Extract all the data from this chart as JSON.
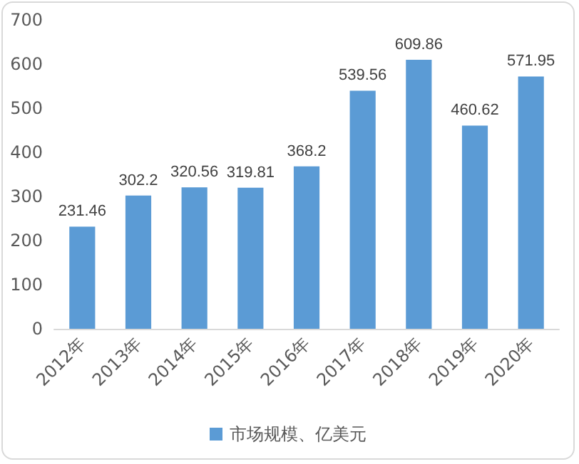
{
  "chart_data": {
    "type": "bar",
    "categories": [
      "2012年",
      "2013年",
      "2014年",
      "2015年",
      "2016年",
      "2017年",
      "2018年",
      "2019年",
      "2020年"
    ],
    "series": [
      {
        "name": "市场规模、亿美元",
        "color": "#5b9bd5",
        "values": [
          231.46,
          302.2,
          320.56,
          319.81,
          368.2,
          539.56,
          609.86,
          460.62,
          571.95
        ]
      }
    ],
    "ylim": [
      0,
      700
    ],
    "yticks": [
      0,
      100,
      200,
      300,
      400,
      500,
      600,
      700
    ],
    "grid": false,
    "legend": "bottom",
    "data_labels": true
  }
}
